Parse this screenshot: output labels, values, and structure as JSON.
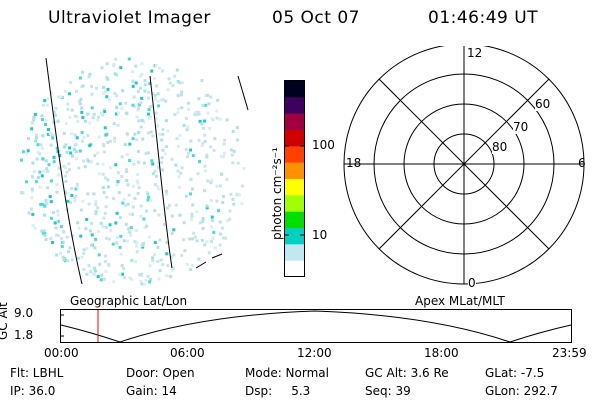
{
  "header": {
    "title": "Ultraviolet Imager",
    "date": "05 Oct 07",
    "time": "01:46:49 UT"
  },
  "left_panel": {
    "caption": "Geographic Lat/Lon"
  },
  "colorbar": {
    "unit_label": "photon cm⁻²s⁻¹",
    "tick_labels": [
      "100",
      "10"
    ],
    "colors": [
      "#000020",
      "#400060",
      "#a00040",
      "#d00000",
      "#ff4000",
      "#ff9000",
      "#ffff00",
      "#a0ff00",
      "#00e000",
      "#00d0c0",
      "#c0e8f0",
      "#ffffff"
    ]
  },
  "polar_plot": {
    "caption": "Apex MLat/MLT",
    "mlt_labels": {
      "top": "12",
      "right": "6",
      "bottom": "0",
      "left": "18"
    },
    "lat_labels": [
      "60",
      "70",
      "80"
    ]
  },
  "altitude_strip": {
    "ylabel": "GC Alt",
    "ytick_labels": [
      "9.0",
      "1.8"
    ],
    "xtick_labels": [
      "00:00",
      "06:00",
      "12:00",
      "18:00",
      "23:59"
    ],
    "marker_color": "#ff0000"
  },
  "info": {
    "flt": "Flt: LBHL",
    "door": "Door: Open",
    "mode": "Mode: Normal",
    "gc_alt": "GC Alt: 3.6 Re",
    "glat": "GLat: -7.5",
    "ip": "IP: 36.0",
    "gain": "Gain: 14",
    "dsp": "Dsp:     5.3",
    "seq": "Seq: 39",
    "glon": "GLon: 292.7"
  }
}
